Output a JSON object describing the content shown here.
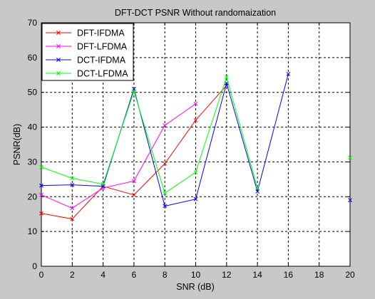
{
  "chart_data": {
    "type": "line",
    "title": "DFT-DCT PSNR Without randomaization",
    "xlabel": "SNR (dB)",
    "ylabel": "PSNR(dB)",
    "xlim": [
      0,
      20
    ],
    "ylim": [
      0,
      70
    ],
    "xticks": [
      0,
      2,
      4,
      6,
      8,
      10,
      12,
      14,
      16,
      18,
      20
    ],
    "yticks": [
      0,
      10,
      20,
      30,
      40,
      50,
      60,
      70
    ],
    "grid": true,
    "grid_style": "dashed",
    "legend_position": "top-left",
    "marker": "x",
    "series": [
      {
        "name": "DFT-IFDMA",
        "color": "#ff0000",
        "x": [
          0,
          2,
          4,
          6,
          8,
          10,
          12
        ],
        "y": [
          15.2,
          13.6,
          23.0,
          20.5,
          29.5,
          42.0,
          52.0
        ]
      },
      {
        "name": "DFT-LFDMA",
        "color": "#ff00ff",
        "x": [
          0,
          2,
          4,
          6,
          8,
          10
        ],
        "y": [
          20.5,
          16.7,
          22.5,
          24.5,
          40.5,
          46.7
        ]
      },
      {
        "name": "DCT-IFDMA",
        "color": "#0000ff",
        "x": [
          0,
          2,
          4,
          6,
          8,
          10,
          12,
          14,
          16
        ],
        "y": [
          23.2,
          23.4,
          23.0,
          51.0,
          17.3,
          19.3,
          52.6,
          21.5,
          55.3
        ]
      },
      {
        "name": "DCT-LFDMA",
        "color": "#00ff00",
        "x": [
          0,
          2,
          4,
          6,
          8,
          10,
          12,
          14
        ],
        "y": [
          28.5,
          25.3,
          23.6,
          50.3,
          21.0,
          27.0,
          54.4,
          22.5
        ]
      }
    ],
    "extra_points": [
      {
        "series": "DCT-IFDMA",
        "x": 20,
        "y": 19.0
      },
      {
        "series": "DCT-LFDMA",
        "x": 20,
        "y": 31.2
      }
    ]
  }
}
